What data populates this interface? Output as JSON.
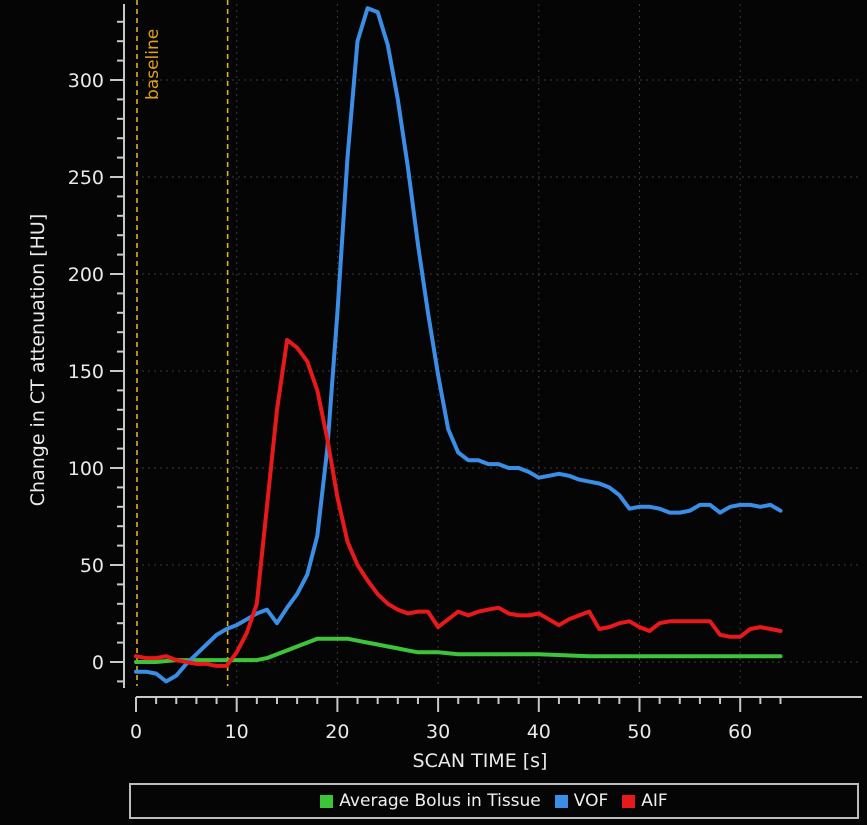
{
  "chart_data": {
    "type": "line",
    "title": "",
    "xlabel": "SCAN TIME [s]",
    "ylabel": "Change in CT attenuation [HU]",
    "xlim": [
      0,
      64
    ],
    "ylim": [
      -12,
      340
    ],
    "xticks": [
      0,
      10,
      20,
      30,
      40,
      50,
      60
    ],
    "yticks": [
      0,
      50,
      100,
      150,
      200,
      250,
      300
    ],
    "grid": true,
    "legend_position": "bottom",
    "annotations": [
      {
        "type": "vertical-dashed-line",
        "x": 0,
        "color": "#e0b020"
      },
      {
        "type": "vertical-dashed-line",
        "x": 9,
        "color": "#e0b020"
      },
      {
        "type": "text",
        "text": "baseline",
        "x": 1,
        "rotation": -90,
        "color": "#e0a020"
      }
    ],
    "series": [
      {
        "name": "Average Bolus in Tissue",
        "color": "#3ec43a",
        "x": [
          0,
          2,
          4,
          6,
          8,
          9,
          10,
          12,
          13,
          14,
          15,
          16,
          17,
          18,
          19,
          20,
          21,
          22,
          23,
          24,
          25,
          26,
          27,
          28,
          30,
          32,
          35,
          40,
          45,
          50,
          55,
          60,
          64
        ],
        "values": [
          0,
          0,
          1,
          1,
          1,
          1,
          1,
          1,
          2,
          4,
          6,
          8,
          10,
          12,
          12,
          12,
          12,
          11,
          10,
          9,
          8,
          7,
          6,
          5,
          5,
          4,
          4,
          4,
          3,
          3,
          3,
          3,
          3
        ]
      },
      {
        "name": "VOF",
        "color": "#3b8ee6",
        "x": [
          0,
          1,
          2,
          3,
          4,
          5,
          6,
          7,
          8,
          9,
          10,
          11,
          12,
          13,
          14,
          15,
          16,
          17,
          18,
          19,
          20,
          21,
          22,
          23,
          24,
          25,
          26,
          27,
          28,
          29,
          30,
          31,
          32,
          33,
          34,
          35,
          36,
          37,
          38,
          39,
          40,
          41,
          42,
          43,
          44,
          45,
          46,
          47,
          48,
          49,
          50,
          51,
          52,
          53,
          54,
          55,
          56,
          57,
          58,
          59,
          60,
          61,
          62,
          63,
          64
        ],
        "values": [
          -5,
          -5,
          -6,
          -10,
          -7,
          -1,
          4,
          9,
          14,
          17,
          19,
          22,
          25,
          27,
          20,
          28,
          35,
          45,
          65,
          110,
          180,
          260,
          320,
          337,
          335,
          318,
          290,
          255,
          215,
          180,
          148,
          120,
          108,
          104,
          104,
          102,
          102,
          100,
          100,
          98,
          95,
          96,
          97,
          96,
          94,
          93,
          92,
          90,
          86,
          79,
          80,
          80,
          79,
          77,
          77,
          78,
          81,
          81,
          77,
          80,
          81,
          81,
          80,
          81,
          78
        ]
      },
      {
        "name": "AIF",
        "color": "#e8191b",
        "x": [
          0,
          1,
          2,
          3,
          4,
          5,
          6,
          7,
          8,
          9,
          10,
          11,
          12,
          13,
          14,
          15,
          16,
          17,
          18,
          19,
          20,
          21,
          22,
          23,
          24,
          25,
          26,
          27,
          28,
          29,
          30,
          31,
          32,
          33,
          34,
          35,
          36,
          37,
          38,
          39,
          40,
          41,
          42,
          43,
          44,
          45,
          46,
          47,
          48,
          49,
          50,
          51,
          52,
          53,
          54,
          55,
          56,
          57,
          58,
          59,
          60,
          61,
          62,
          63,
          64
        ],
        "values": [
          3,
          2,
          2,
          3,
          1,
          0,
          -1,
          -1,
          -2,
          -2,
          5,
          15,
          30,
          80,
          130,
          166,
          162,
          155,
          140,
          115,
          85,
          62,
          50,
          42,
          35,
          30,
          27,
          25,
          26,
          26,
          18,
          22,
          26,
          24,
          26,
          27,
          28,
          25,
          24,
          24,
          25,
          22,
          19,
          22,
          24,
          26,
          17,
          18,
          20,
          21,
          18,
          16,
          20,
          21,
          21,
          21,
          21,
          21,
          14,
          13,
          13,
          17,
          18,
          17,
          16
        ]
      }
    ]
  },
  "axes": {
    "y_label": "Change in CT attenuation [HU]",
    "x_label": "SCAN TIME [s]",
    "baseline_label": "baseline"
  },
  "legend": {
    "items": [
      {
        "label": "Average Bolus in Tissue",
        "color": "#3ec43a"
      },
      {
        "label": "VOF",
        "color": "#3b8ee6"
      },
      {
        "label": "AIF",
        "color": "#e8191b"
      }
    ]
  }
}
